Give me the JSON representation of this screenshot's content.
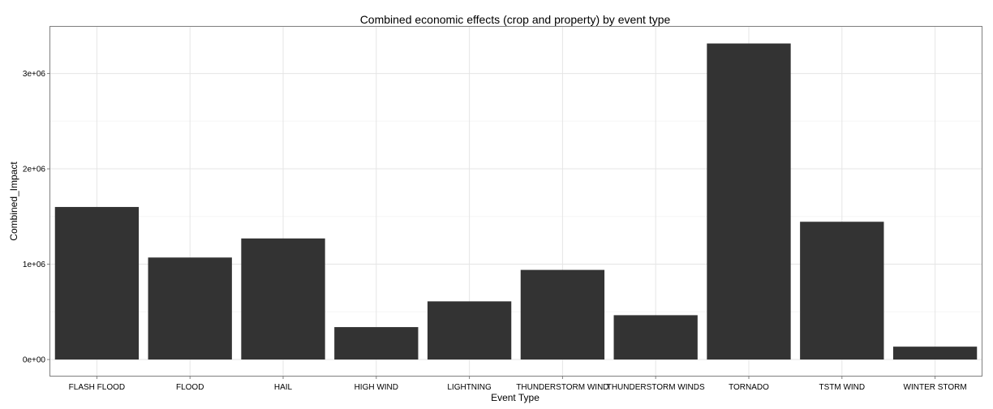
{
  "chart_data": {
    "type": "bar",
    "title": "Combined economic effects (crop and property) by event type",
    "xlabel": "Event Type",
    "ylabel": "Combined_Impact",
    "categories": [
      "FLASH FLOOD",
      "FLOOD",
      "HAIL",
      "HIGH WIND",
      "LIGHTNING",
      "THUNDERSTORM WIND",
      "THUNDERSTORM WINDS",
      "TORNADO",
      "TSTM WIND",
      "WINTER STORM"
    ],
    "values": [
      1600000,
      1070000,
      1270000,
      340000,
      610000,
      940000,
      465000,
      3315000,
      1445000,
      135000
    ],
    "ylim": [
      -170000,
      3490000
    ],
    "yticks": [
      0,
      1000000,
      2000000,
      3000000
    ],
    "ytick_labels": [
      "0e+00",
      "1e+06",
      "2e+06",
      "3e+06"
    ],
    "grid": true,
    "colors": {
      "bar": "#333333",
      "panel_border": "#7f7f7f",
      "grid_major": "#e5e5e5",
      "grid_minor": "#f5f5f5"
    }
  }
}
